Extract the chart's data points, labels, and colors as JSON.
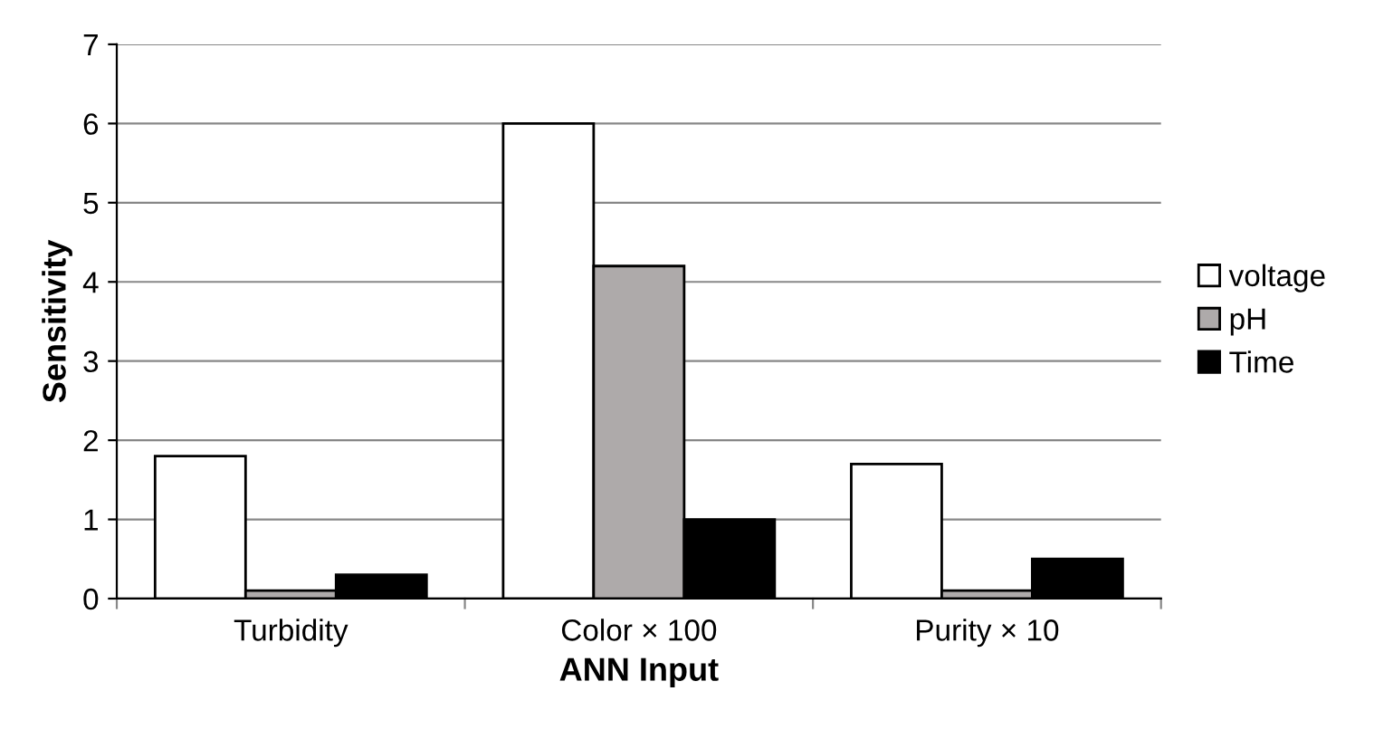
{
  "chart_data": {
    "type": "bar",
    "xlabel": "ANN Input",
    "ylabel": "Sensitivity",
    "categories": [
      "Turbidity",
      "Color × 100",
      "Purity × 10"
    ],
    "series": [
      {
        "name": "voltage",
        "color": "#ffffff",
        "values": [
          1.8,
          6.0,
          1.7
        ]
      },
      {
        "name": "pH",
        "color": "#aeaaaa",
        "values": [
          0.1,
          4.2,
          0.1
        ]
      },
      {
        "name": "Time",
        "color": "#000000",
        "values": [
          0.3,
          1.0,
          0.5
        ]
      }
    ],
    "ylim": [
      0,
      7
    ],
    "yticks": [
      0,
      1,
      2,
      3,
      4,
      5,
      6,
      7
    ],
    "grid": "y",
    "legend": "right"
  }
}
